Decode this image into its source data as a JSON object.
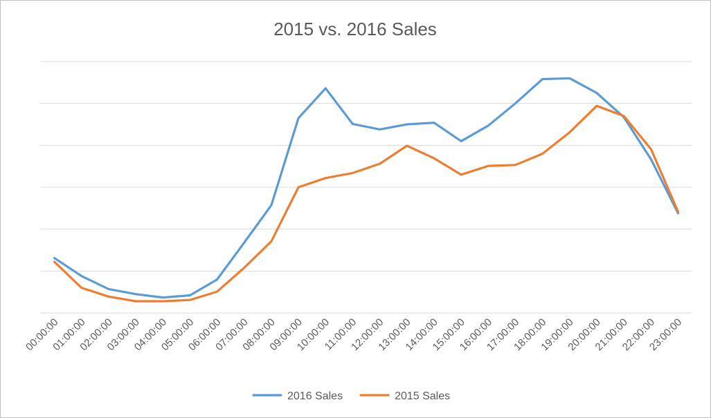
{
  "chart_data": {
    "type": "line",
    "title": "2015 vs. 2016 Sales",
    "xlabel": "",
    "ylabel": "",
    "ylim": [
      0,
      6
    ],
    "grid": true,
    "legend_position": "bottom",
    "categories": [
      "00:00:00",
      "01:00:00",
      "02:00:00",
      "03:00:00",
      "04:00:00",
      "05:00:00",
      "06:00:00",
      "07:00:00",
      "08:00:00",
      "09:00:00",
      "10:00:00",
      "11:00:00",
      "12:00:00",
      "13:00:00",
      "14:00:00",
      "15:00:00",
      "16:00:00",
      "17:00:00",
      "18:00:00",
      "19:00:00",
      "20:00:00",
      "21:00:00",
      "22:00:00",
      "23:00:00"
    ],
    "series": [
      {
        "name": "2016 Sales",
        "color": "#5b9bd5",
        "values": [
          1.31,
          0.88,
          0.57,
          0.45,
          0.37,
          0.42,
          0.8,
          1.68,
          2.57,
          4.65,
          5.36,
          4.51,
          4.38,
          4.5,
          4.54,
          4.1,
          4.47,
          5.0,
          5.58,
          5.6,
          5.25,
          4.67,
          3.67,
          2.38
        ]
      },
      {
        "name": "2015 Sales",
        "color": "#ed7d31",
        "values": [
          1.22,
          0.6,
          0.39,
          0.28,
          0.28,
          0.31,
          0.51,
          1.08,
          1.71,
          3.0,
          3.22,
          3.34,
          3.56,
          3.99,
          3.69,
          3.3,
          3.51,
          3.53,
          3.8,
          4.31,
          4.94,
          4.7,
          3.91,
          2.42
        ]
      }
    ]
  }
}
